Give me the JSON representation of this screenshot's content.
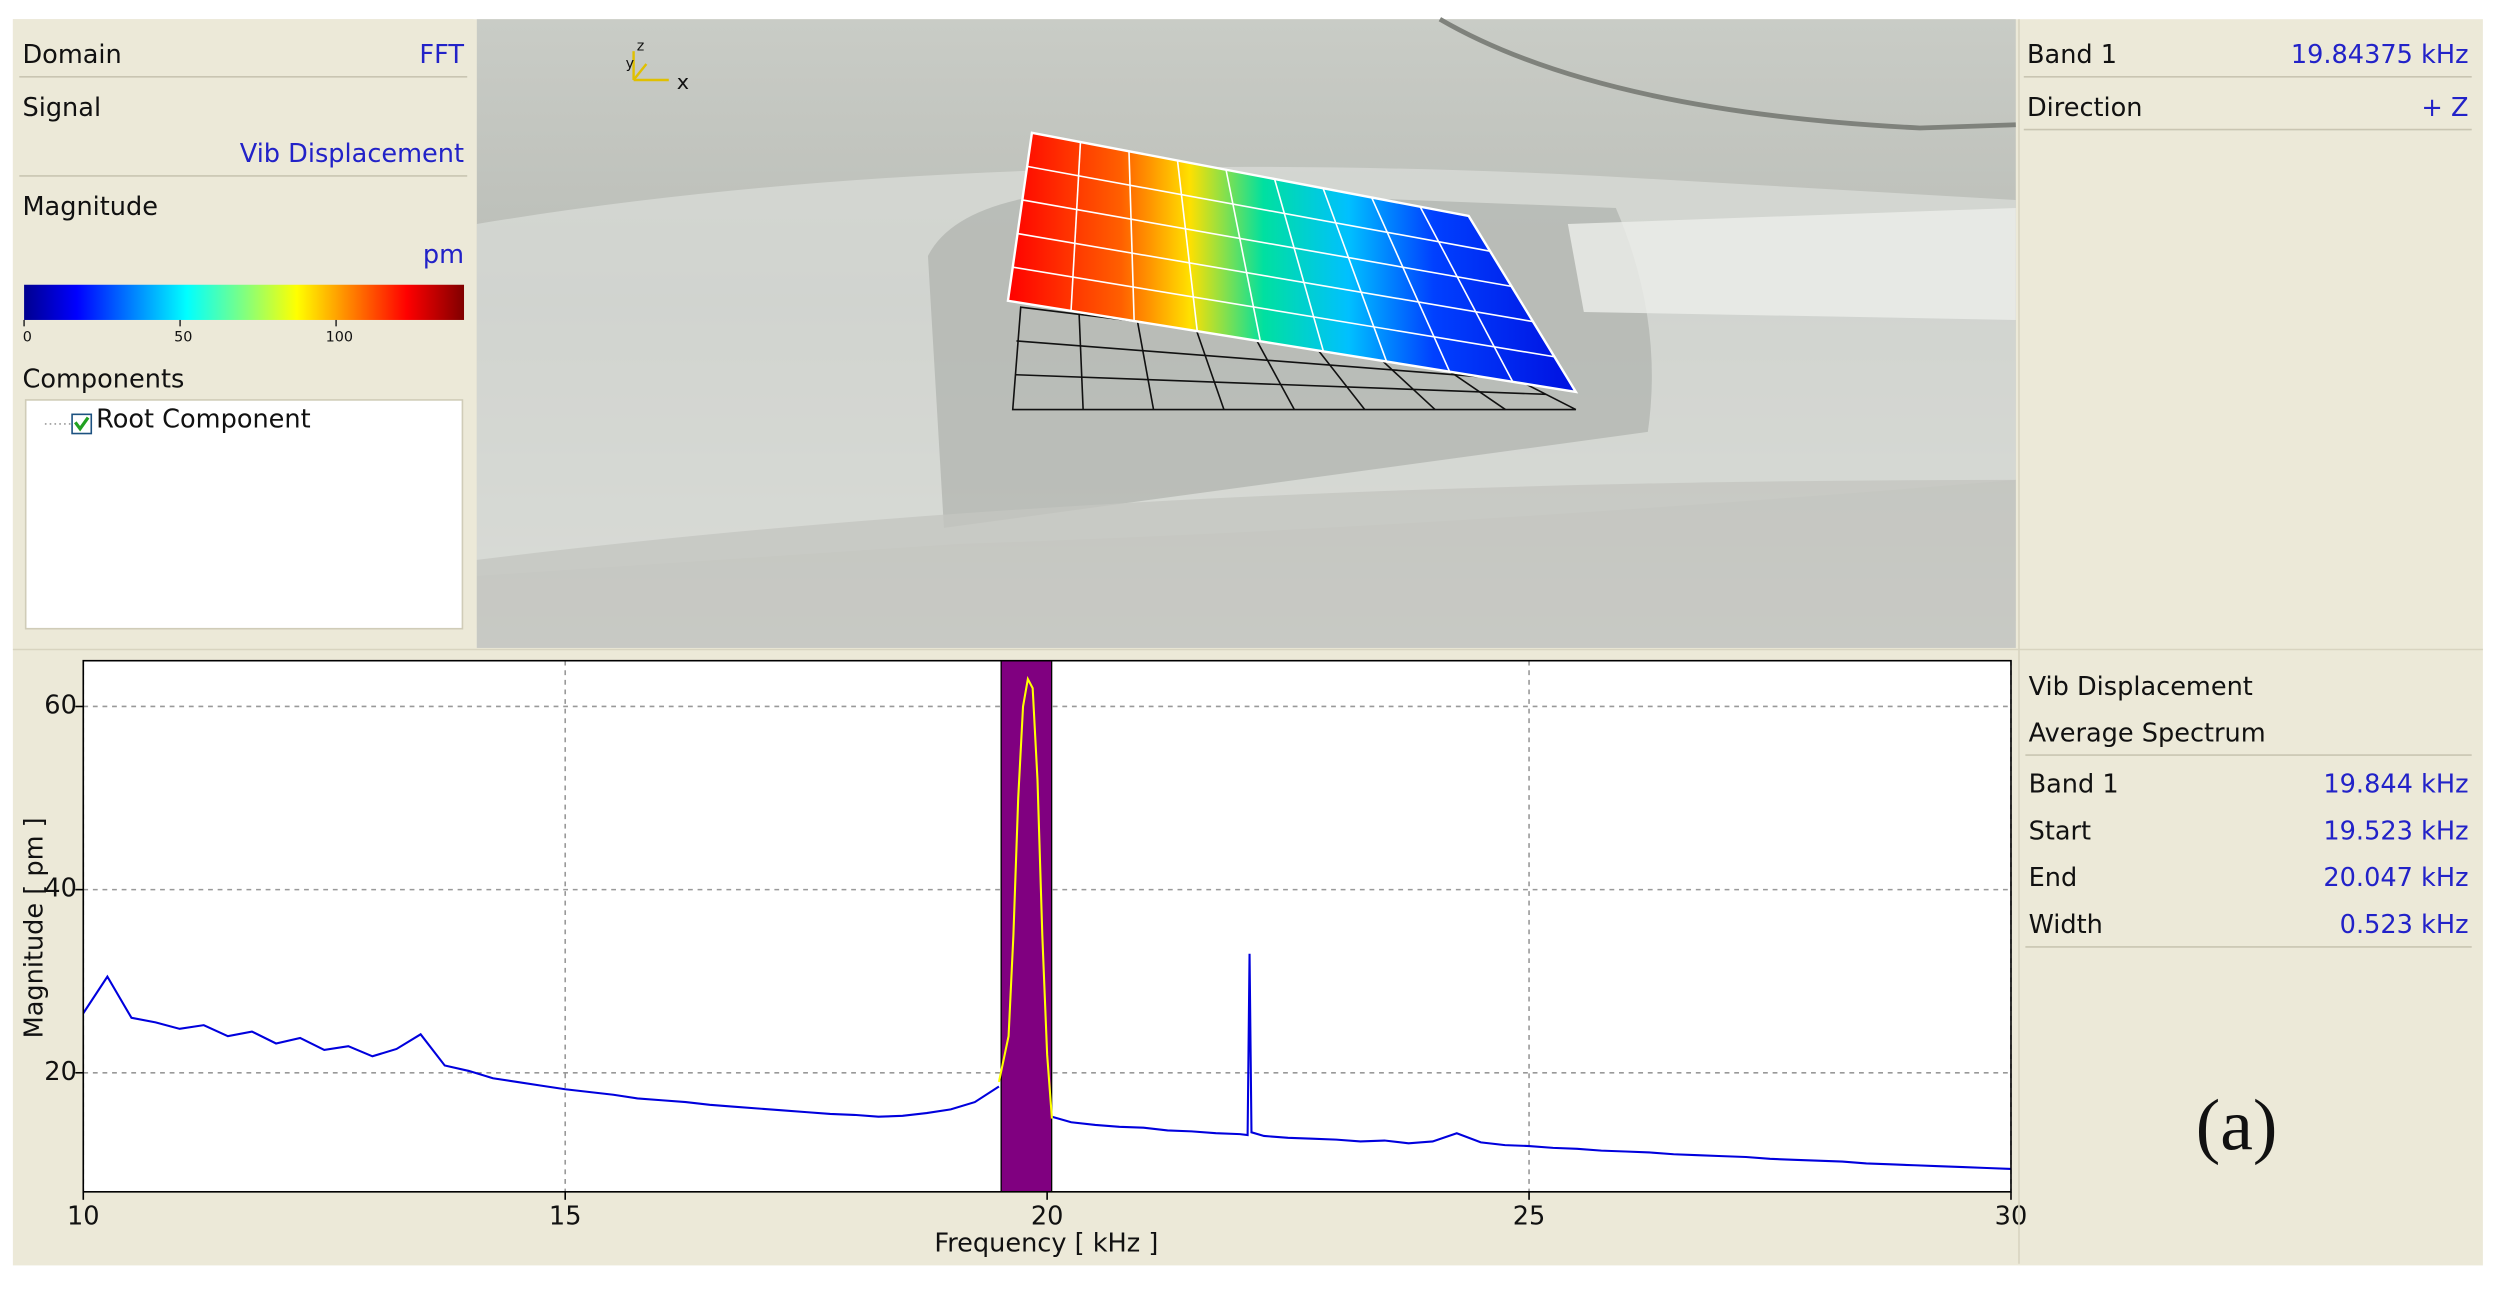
{
  "left_panel": {
    "domain_label": "Domain",
    "domain_value": "FFT",
    "signal_label": "Signal",
    "signal_value": "Vib Displacement",
    "magnitude_label": "Magnitude",
    "magnitude_unit": "pm",
    "colorbar": {
      "lim": [
        0,
        141
      ],
      "ticks": [
        0,
        50,
        100
      ]
    },
    "components_label": "Components",
    "tree": [
      "Root Component"
    ]
  },
  "view_axes": [
    "z",
    "y",
    "x"
  ],
  "band_panel": {
    "rows": [
      {
        "label": "Band 1",
        "value": "19.84375 kHz"
      },
      {
        "label": "Direction",
        "value": "+ Z"
      }
    ]
  },
  "chart_data": {
    "type": "line",
    "xlabel": "Frequency [ kHz ]",
    "ylabel": "Magnitude [ pm ]",
    "xlim": [
      10,
      30
    ],
    "ylim": [
      7,
      65
    ],
    "xticks": [
      10,
      15,
      20,
      25,
      30
    ],
    "yticks": [
      20,
      40,
      60
    ],
    "grid": true,
    "band": {
      "start": 19.523,
      "end": 20.047,
      "color": "#800080"
    },
    "series": [
      {
        "color": "#0000dd",
        "x": [
          10,
          10.25,
          10.5,
          10.75,
          11,
          11.25,
          11.5,
          11.75,
          12,
          12.25,
          12.5,
          12.75,
          13,
          13.25,
          13.5,
          13.75,
          14,
          14.25,
          14.5,
          14.75,
          15,
          15.25,
          15.5,
          15.75,
          16,
          16.25,
          16.5,
          16.75,
          17,
          17.25,
          17.5,
          17.75,
          18,
          18.25,
          18.5,
          18.75,
          19,
          19.25,
          19.5,
          19.8,
          20.05,
          20.25,
          20.5,
          20.75,
          21,
          21.25,
          21.5,
          21.75,
          22,
          22.08,
          22.1,
          22.12,
          22.25,
          22.5,
          22.75,
          23,
          23.25,
          23.5,
          23.75,
          24,
          24.25,
          24.5,
          24.75,
          25,
          25.25,
          25.5,
          25.75,
          26,
          26.25,
          26.5,
          26.75,
          27,
          27.25,
          27.5,
          27.75,
          28,
          28.25,
          28.5,
          28.75,
          29,
          29.25,
          29.5,
          29.75,
          30
        ],
        "values": [
          26.5,
          30.5,
          26,
          25.5,
          24.8,
          25.2,
          24,
          24.5,
          23.2,
          23.8,
          22.5,
          22.9,
          21.8,
          22.6,
          24.2,
          20.8,
          20.2,
          19.4,
          19,
          18.6,
          18.2,
          17.9,
          17.6,
          17.2,
          17,
          16.8,
          16.5,
          16.3,
          16.1,
          15.9,
          15.7,
          15.5,
          15.4,
          15.2,
          15.3,
          15.6,
          16,
          16.8,
          18.5,
          null,
          15.2,
          14.6,
          14.3,
          14.1,
          14,
          13.7,
          13.6,
          13.4,
          13.3,
          13.2,
          33,
          13.5,
          13.1,
          12.9,
          12.8,
          12.7,
          12.5,
          12.6,
          12.3,
          12.5,
          13.4,
          12.4,
          12.1,
          12,
          11.8,
          11.7,
          11.5,
          11.4,
          11.3,
          11.1,
          11,
          10.9,
          10.8,
          10.6,
          10.5,
          10.4,
          10.3,
          10.1,
          10,
          9.9,
          9.8,
          9.7,
          9.6,
          9.5
        ]
      },
      {
        "color": "#ffff00",
        "x": [
          19.5,
          19.6,
          19.65,
          19.7,
          19.75,
          19.8,
          19.85,
          19.9,
          19.95,
          20,
          20.05
        ],
        "values": [
          19,
          24,
          35,
          50,
          60,
          63,
          62,
          52,
          35,
          22,
          15
        ]
      }
    ]
  },
  "spectrum_panel": {
    "title": "Vib Displacement",
    "subtitle": "Average Spectrum",
    "rows": [
      {
        "label": "Band 1",
        "value": "19.844 kHz"
      },
      {
        "label": "Start",
        "value": "19.523 kHz"
      },
      {
        "label": "End",
        "value": "20.047 kHz"
      },
      {
        "label": "Width",
        "value": "0.523 kHz"
      }
    ]
  },
  "figure_label": "(a)"
}
